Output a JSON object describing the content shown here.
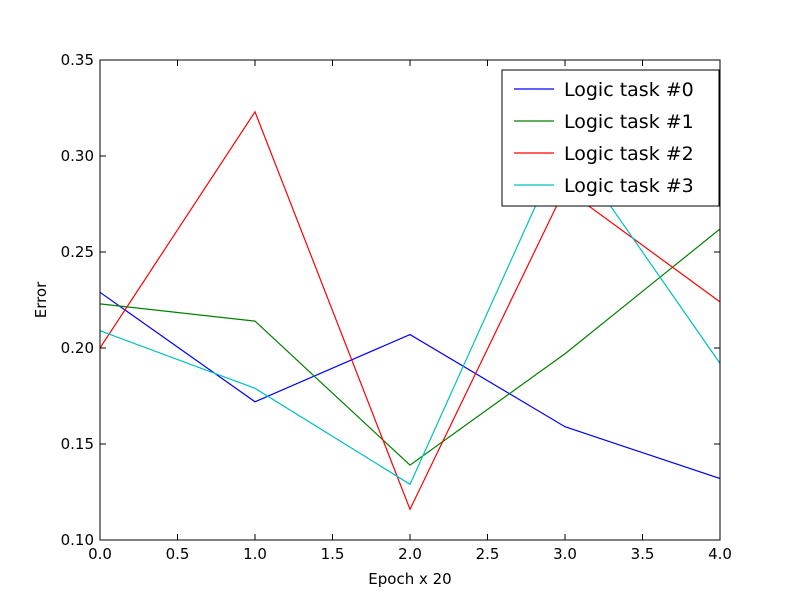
{
  "chart_data": {
    "type": "line",
    "xlabel": "Epoch x 20",
    "ylabel": "Error",
    "xlim": [
      0,
      4
    ],
    "ylim": [
      0.1,
      0.35
    ],
    "x_ticks": [
      0,
      0.5,
      1,
      1.5,
      2,
      2.5,
      3,
      3.5,
      4
    ],
    "x_tick_labels": [
      "0.0",
      "0.5",
      "1.0",
      "1.5",
      "2.0",
      "2.5",
      "3.0",
      "3.5",
      "4.0"
    ],
    "y_ticks": [
      0.1,
      0.15,
      0.2,
      0.25,
      0.3,
      0.35
    ],
    "y_tick_labels": [
      "0.10",
      "0.15",
      "0.20",
      "0.25",
      "0.30",
      "0.35"
    ],
    "grid": false,
    "legend_position": "top-right",
    "x": [
      0,
      1,
      2,
      3,
      4
    ],
    "series": [
      {
        "name": "Logic task #0",
        "color": "#0000ff",
        "values": [
          0.229,
          0.172,
          0.207,
          0.159,
          0.132
        ]
      },
      {
        "name": "Logic task #1",
        "color": "#008000",
        "values": [
          0.223,
          0.214,
          0.139,
          0.197,
          0.262
        ]
      },
      {
        "name": "Logic task #2",
        "color": "#ff0000",
        "values": [
          0.2,
          0.323,
          0.116,
          0.283,
          0.224
        ]
      },
      {
        "name": "Logic task #3",
        "color": "#00bfbf",
        "values": [
          0.209,
          0.179,
          0.129,
          0.308,
          0.192
        ]
      }
    ]
  }
}
